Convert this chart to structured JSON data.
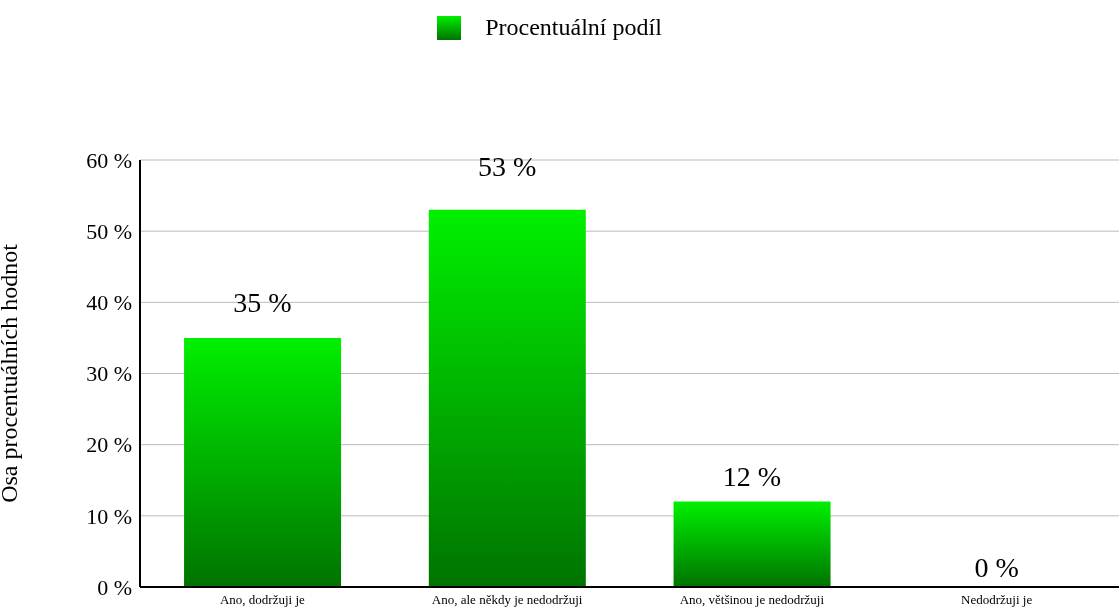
{
  "chart_data": {
    "type": "bar",
    "ylabel": "Osa procentuálních hodnot",
    "legend": "top",
    "categories": [
      "Ano, dodržuji je",
      "Ano, ale někdy je nedodržuji",
      "Ano, většinou je nedodržuji",
      "Nedodržuji je"
    ],
    "series": [
      {
        "name": "Procentuální podíl",
        "color": "#00c000",
        "values": [
          35,
          53,
          12,
          0
        ],
        "value_labels": [
          "35 %",
          "53 %",
          "12 %",
          "0 %"
        ]
      }
    ],
    "ylim": [
      0,
      60
    ],
    "yticks": [
      {
        "value": 0,
        "label": "0 %"
      },
      {
        "value": 10,
        "label": "10 %"
      },
      {
        "value": 20,
        "label": "20 %"
      },
      {
        "value": 30,
        "label": "30 %"
      },
      {
        "value": 40,
        "label": "40 %"
      },
      {
        "value": 50,
        "label": "50 %"
      },
      {
        "value": 60,
        "label": "60 %"
      }
    ],
    "grid": "y"
  }
}
